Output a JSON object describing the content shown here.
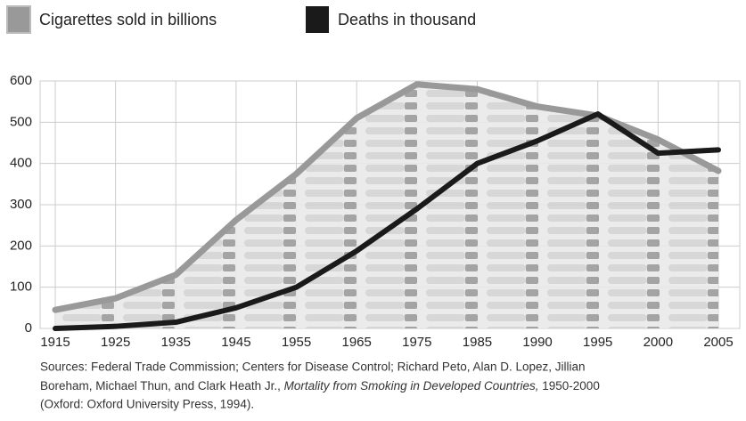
{
  "chart_data": {
    "type": "line",
    "categories": [
      "1915",
      "1925",
      "1935",
      "1945",
      "1955",
      "1965",
      "1975",
      "1985",
      "1990",
      "1995",
      "2000",
      "2005"
    ],
    "series": [
      {
        "name": "Cigarettes sold in billions",
        "color": "#999999",
        "values": [
          45,
          73,
          130,
          263,
          375,
          510,
          592,
          580,
          538,
          516,
          458,
          382
        ]
      },
      {
        "name": "Deaths in thousand",
        "color": "#1a1a1a",
        "values": [
          0,
          5,
          15,
          50,
          100,
          188,
          290,
          400,
          455,
          520,
          425,
          433
        ]
      }
    ],
    "ylim": [
      0,
      600
    ],
    "yticks": [
      0,
      100,
      200,
      300,
      400,
      500,
      600
    ],
    "grid": true,
    "source": [
      "Sources: Federal Trade Commission; Centers for Disease Control; Richard Peto, Alan D. Lopez, Jillian",
      "Boreham, Michael Thun, and Clark Heath Jr., ",
      "Mortality from Smoking in Developed Countries,",
      " 1950-2000",
      "(Oxford: Oxford University Press, 1994)."
    ]
  }
}
